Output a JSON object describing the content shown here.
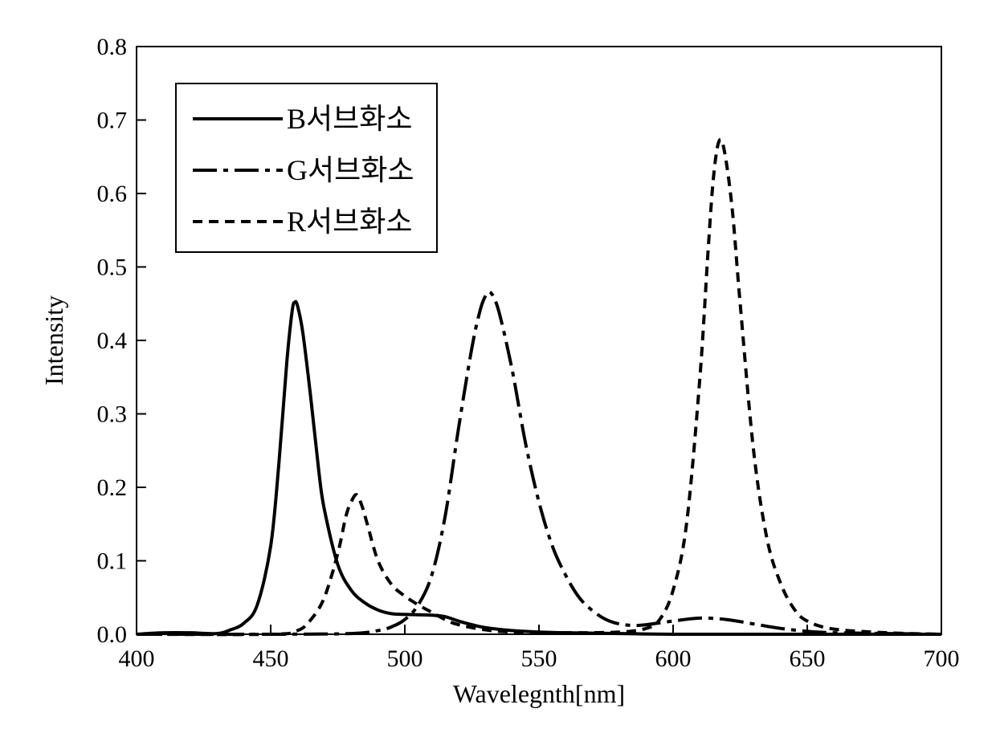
{
  "chart_data": {
    "type": "line",
    "title": "",
    "xlabel": "Wavelegnth[nm]",
    "ylabel": "Intensity",
    "xlim": [
      400,
      700
    ],
    "ylim": [
      0,
      0.8
    ],
    "xticks": [
      "400",
      "450",
      "500",
      "550",
      "600",
      "650",
      "700"
    ],
    "yticks": [
      "0.0",
      "0.1",
      "0.2",
      "0.3",
      "0.4",
      "0.5",
      "0.6",
      "0.7",
      "0.8"
    ],
    "grid": false,
    "legend_position": "top-left",
    "series": [
      {
        "name": "B서브화소",
        "line_style": "solid",
        "x": [
          400,
          410,
          420,
          430,
          435,
          440,
          445,
          450,
          453,
          456,
          458,
          459,
          460,
          462,
          465,
          468,
          470,
          475,
          480,
          485,
          490,
          495,
          500,
          510,
          515,
          520,
          525,
          530,
          540,
          550,
          560,
          580,
          600,
          650,
          700
        ],
        "y": [
          0.0,
          0.002,
          0.002,
          0.001,
          0.006,
          0.015,
          0.04,
          0.12,
          0.23,
          0.37,
          0.44,
          0.452,
          0.447,
          0.41,
          0.32,
          0.22,
          0.17,
          0.095,
          0.06,
          0.043,
          0.033,
          0.028,
          0.027,
          0.026,
          0.024,
          0.018,
          0.013,
          0.009,
          0.005,
          0.003,
          0.002,
          0.001,
          0.0,
          0.0,
          0.0
        ]
      },
      {
        "name": "G서브화소",
        "line_style": "dash-dot",
        "x": [
          400,
          450,
          480,
          490,
          495,
          500,
          505,
          510,
          515,
          520,
          525,
          528,
          530,
          532,
          535,
          540,
          545,
          550,
          555,
          560,
          565,
          570,
          575,
          580,
          585,
          590,
          600,
          610,
          620,
          630,
          640,
          650,
          660,
          680,
          700
        ],
        "y": [
          0.0,
          0.0,
          0.001,
          0.005,
          0.01,
          0.02,
          0.04,
          0.08,
          0.16,
          0.28,
          0.39,
          0.44,
          0.46,
          0.465,
          0.44,
          0.36,
          0.26,
          0.18,
          0.12,
          0.08,
          0.05,
          0.032,
          0.02,
          0.014,
          0.012,
          0.013,
          0.018,
          0.022,
          0.02,
          0.014,
          0.008,
          0.004,
          0.002,
          0.001,
          0.0
        ]
      },
      {
        "name": "R서브화소",
        "line_style": "dashed",
        "x": [
          400,
          450,
          460,
          465,
          470,
          475,
          478,
          480,
          482,
          484,
          486,
          490,
          495,
          500,
          505,
          510,
          515,
          520,
          530,
          540,
          560,
          580,
          590,
          595,
          600,
          605,
          610,
          613,
          615,
          617,
          619,
          622,
          625,
          630,
          635,
          640,
          645,
          650,
          660,
          680,
          700
        ],
        "y": [
          0.0,
          0.0,
          0.005,
          0.02,
          0.05,
          0.11,
          0.16,
          0.18,
          0.19,
          0.175,
          0.15,
          0.1,
          0.068,
          0.052,
          0.04,
          0.03,
          0.02,
          0.013,
          0.006,
          0.003,
          0.002,
          0.003,
          0.008,
          0.02,
          0.06,
          0.15,
          0.35,
          0.52,
          0.62,
          0.67,
          0.66,
          0.58,
          0.45,
          0.25,
          0.13,
          0.07,
          0.035,
          0.018,
          0.007,
          0.002,
          0.0
        ]
      }
    ]
  }
}
